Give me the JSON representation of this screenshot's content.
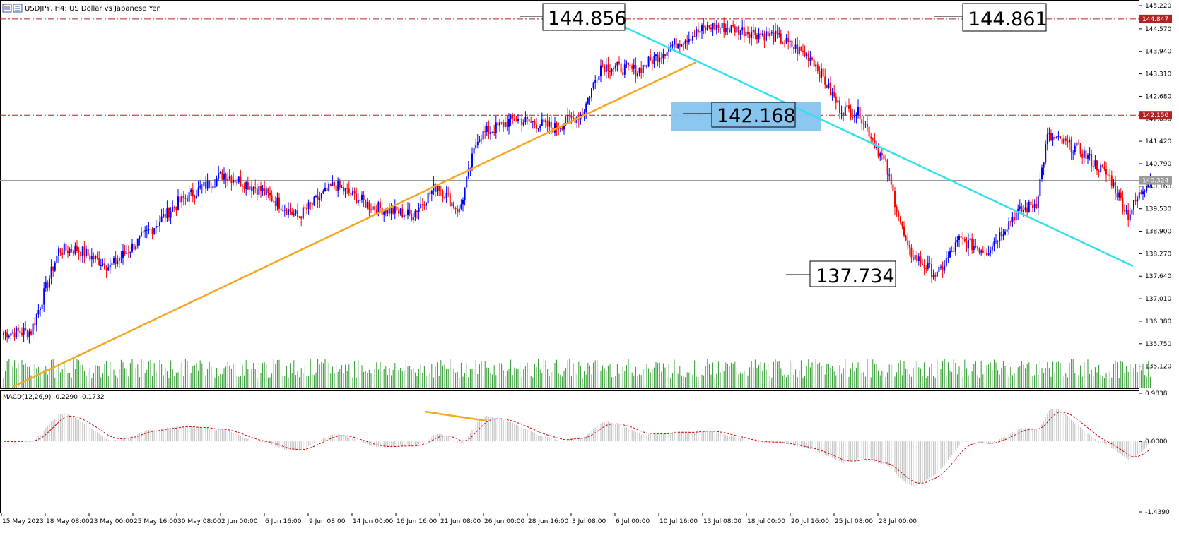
{
  "header": {
    "title": "USDJPY, H4:  US Dollar vs Japanese Yen"
  },
  "colors": {
    "bull": "#0000ff",
    "bear": "#ff0000",
    "volume": "#2e9b2e",
    "trend_up": "#f5a623",
    "trend_down": "#33e0f0",
    "resistance_line": "#b22222",
    "current_price_line": "#9a9a9a",
    "highlight_zone": "#86c4ee",
    "macd_hist": "#c0c0c0",
    "macd_signal": "#cc0000"
  },
  "chart_data": {
    "type": "candlestick",
    "symbol": "USDJPY",
    "timeframe": "H4",
    "ylim": [
      134.5,
      145.22
    ],
    "y_ticks": [
      "145.220",
      "144.570",
      "143.940",
      "143.310",
      "142.680",
      "142.050",
      "141.420",
      "140.790",
      "140.160",
      "139.530",
      "138.900",
      "138.270",
      "137.640",
      "137.010",
      "136.380",
      "135.750",
      "135.120"
    ],
    "x_ticks": [
      "15 May 2023",
      "18 May 08:00",
      "23 May 00:00",
      "25 May 16:00",
      "30 May 08:00",
      "2 Jun 00:00",
      "6 Jun 16:00",
      "9 Jun 08:00",
      "14 Jun 00:00",
      "16 Jun 16:00",
      "21 Jun 08:00",
      "26 Jun 00:00",
      "28 Jun 16:00",
      "3 Jul 08:00",
      "6 Jul 00:00",
      "10 Jul 16:00",
      "13 Jul 08:00",
      "18 Jul 00:00",
      "20 Jul 16:00",
      "25 Jul 08:00",
      "28 Jul 00:00"
    ],
    "price_path": [
      {
        "t": 0,
        "p": 136.05
      },
      {
        "t": 15,
        "p": 136.1
      },
      {
        "t": 30,
        "p": 138.35
      },
      {
        "t": 40,
        "p": 138.4
      },
      {
        "t": 58,
        "p": 137.9
      },
      {
        "t": 75,
        "p": 138.7
      },
      {
        "t": 95,
        "p": 139.7
      },
      {
        "t": 120,
        "p": 140.5
      },
      {
        "t": 140,
        "p": 140.05
      },
      {
        "t": 160,
        "p": 139.3
      },
      {
        "t": 180,
        "p": 140.2
      },
      {
        "t": 200,
        "p": 139.6
      },
      {
        "t": 222,
        "p": 139.35
      },
      {
        "t": 236,
        "p": 140.2
      },
      {
        "t": 248,
        "p": 139.45
      },
      {
        "t": 258,
        "p": 141.55
      },
      {
        "t": 278,
        "p": 142.05
      },
      {
        "t": 300,
        "p": 141.8
      },
      {
        "t": 315,
        "p": 142.2
      },
      {
        "t": 325,
        "p": 143.55
      },
      {
        "t": 345,
        "p": 143.4
      },
      {
        "t": 365,
        "p": 144.15
      },
      {
        "t": 385,
        "p": 144.65
      },
      {
        "t": 400,
        "p": 144.55
      },
      {
        "t": 420,
        "p": 144.35
      },
      {
        "t": 440,
        "p": 143.75
      },
      {
        "t": 455,
        "p": 142.35
      },
      {
        "t": 466,
        "p": 142.2
      },
      {
        "t": 480,
        "p": 140.75
      },
      {
        "t": 492,
        "p": 138.35
      },
      {
        "t": 508,
        "p": 137.65
      },
      {
        "t": 520,
        "p": 138.65
      },
      {
        "t": 535,
        "p": 138.35
      },
      {
        "t": 550,
        "p": 139.35
      },
      {
        "t": 562,
        "p": 139.7
      },
      {
        "t": 568,
        "p": 141.55
      },
      {
        "t": 585,
        "p": 141.2
      },
      {
        "t": 602,
        "p": 140.4
      },
      {
        "t": 612,
        "p": 139.35
      },
      {
        "t": 624,
        "p": 140.45
      }
    ],
    "volume_range": [
      0.35,
      1.0
    ],
    "macd": {
      "label": "MACD(12,26,9) -0.2290 -0.1732",
      "params": [
        12,
        26,
        9
      ],
      "main": -0.229,
      "signal": -0.1732,
      "ylim": [
        -1.439,
        0.9838
      ],
      "y_ticks": [
        "0.9838",
        "0.0000",
        "-1.4390"
      ]
    },
    "annotations": {
      "high_callout": "144.856",
      "right_callout": "144.861",
      "zone_callout": "142.168",
      "low_callout": "137.734",
      "resistance_upper": {
        "price": 144.847,
        "label": "144.847"
      },
      "resistance_lower": {
        "price": 142.15,
        "label": "142.150"
      },
      "current_price": {
        "price": 140.324,
        "label": "140.324"
      }
    }
  }
}
